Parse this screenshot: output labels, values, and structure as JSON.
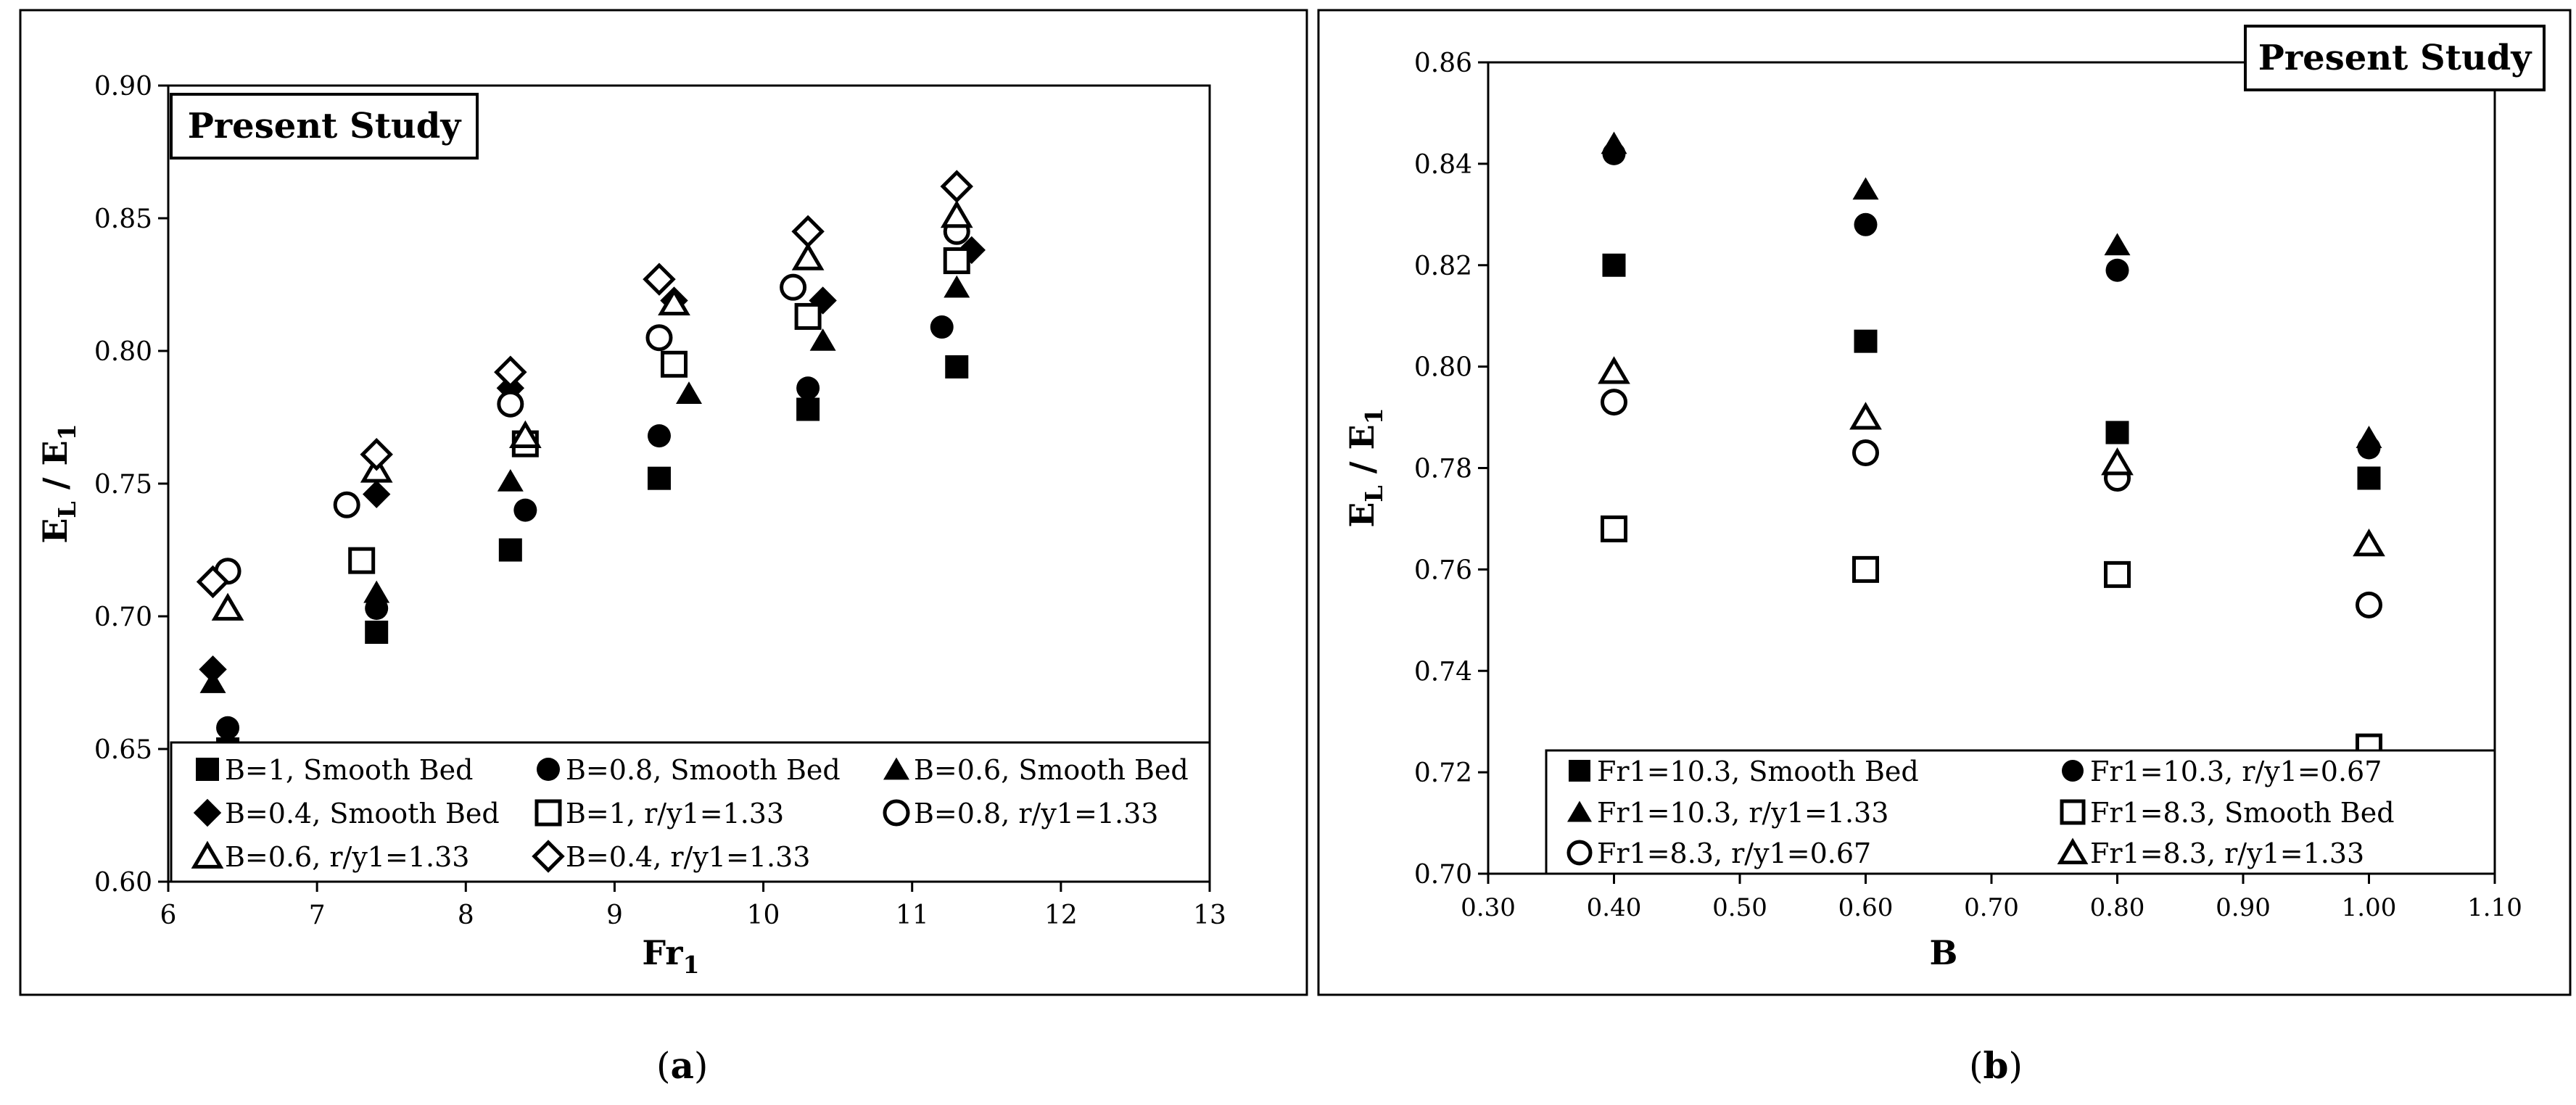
{
  "chart_data": [
    {
      "type": "scatter",
      "panel": "a",
      "title": "Present Study",
      "xlabel": "Fr",
      "xlabel_sub": "1",
      "ylabel_parts": [
        "E",
        "L",
        " / E",
        "1"
      ],
      "xlim": [
        6,
        13
      ],
      "ylim": [
        0.6,
        0.9
      ],
      "xticks": [
        6,
        7,
        8,
        9,
        10,
        11,
        12,
        13
      ],
      "yticks": [
        0.6,
        0.65,
        0.7,
        0.75,
        0.8,
        0.85,
        0.9
      ],
      "ytick_format": 2,
      "grid": false,
      "legend_position": "bottom",
      "series": [
        {
          "name": "B=1, Smooth Bed",
          "marker": "square",
          "filled": true,
          "x": [
            6.4,
            7.4,
            8.3,
            9.3,
            10.3,
            11.3
          ],
          "y": [
            0.65,
            0.694,
            0.725,
            0.752,
            0.778,
            0.794
          ]
        },
        {
          "name": "B=0.8, Smooth Bed",
          "marker": "circle",
          "filled": true,
          "x": [
            6.4,
            7.4,
            8.4,
            9.3,
            10.3,
            11.2
          ],
          "y": [
            0.658,
            0.703,
            0.74,
            0.768,
            0.786,
            0.809
          ]
        },
        {
          "name": "B=0.6, Smooth Bed",
          "marker": "triangle",
          "filled": true,
          "x": [
            6.3,
            7.4,
            8.3,
            9.5,
            10.4,
            11.3
          ],
          "y": [
            0.675,
            0.709,
            0.751,
            0.784,
            0.804,
            0.824
          ]
        },
        {
          "name": "B=0.4, Smooth Bed",
          "marker": "diamond",
          "filled": true,
          "x": [
            6.3,
            7.4,
            8.3,
            9.4,
            10.4,
            11.4
          ],
          "y": [
            0.68,
            0.746,
            0.786,
            0.819,
            0.819,
            0.838
          ]
        },
        {
          "name": "B=1, r/y1=1.33",
          "marker": "square",
          "filled": false,
          "x": [
            7.3,
            8.4,
            9.4,
            10.3,
            11.3
          ],
          "y": [
            0.721,
            0.765,
            0.795,
            0.813,
            0.834
          ]
        },
        {
          "name": "B=0.8, r/y1=1.33",
          "marker": "circle",
          "filled": false,
          "x": [
            6.4,
            7.2,
            8.3,
            9.3,
            10.2,
            11.3
          ],
          "y": [
            0.717,
            0.742,
            0.78,
            0.805,
            0.824,
            0.845
          ]
        },
        {
          "name": "B=0.6, r/y1=1.33",
          "marker": "triangle",
          "filled": false,
          "x": [
            6.4,
            7.4,
            8.4,
            9.4,
            10.3,
            11.3
          ],
          "y": [
            0.703,
            0.755,
            0.768,
            0.818,
            0.835,
            0.851
          ]
        },
        {
          "name": "B=0.4, r/y1=1.33",
          "marker": "diamond",
          "filled": false,
          "x": [
            6.3,
            7.4,
            8.3,
            9.3,
            10.3,
            11.3
          ],
          "y": [
            0.713,
            0.761,
            0.792,
            0.827,
            0.845,
            0.862
          ]
        }
      ]
    },
    {
      "type": "scatter",
      "panel": "b",
      "title": "Present Study",
      "xlabel": "B",
      "xlabel_sub": "",
      "ylabel_parts": [
        "E",
        "L",
        " / E",
        "1"
      ],
      "xlim": [
        0.3,
        1.1
      ],
      "ylim": [
        0.7,
        0.86
      ],
      "xticks": [
        0.3,
        0.4,
        0.5,
        0.6,
        0.7,
        0.8,
        0.9,
        1.0,
        1.1
      ],
      "yticks": [
        0.7,
        0.72,
        0.74,
        0.76,
        0.78,
        0.8,
        0.82,
        0.84,
        0.86
      ],
      "xtick_format": 2,
      "ytick_format": 2,
      "grid": false,
      "legend_position": "bottom",
      "series": [
        {
          "name": "Fr1=10.3, Smooth Bed",
          "marker": "square",
          "filled": true,
          "x": [
            0.4,
            0.6,
            0.8,
            1.0
          ],
          "y": [
            0.82,
            0.805,
            0.787,
            0.778
          ]
        },
        {
          "name": "Fr1=10.3, r/y1=0.67",
          "marker": "circle",
          "filled": true,
          "x": [
            0.4,
            0.6,
            0.8,
            1.0
          ],
          "y": [
            0.842,
            0.828,
            0.819,
            0.784
          ]
        },
        {
          "name": "Fr1=10.3, r/y1=1.33",
          "marker": "triangle",
          "filled": true,
          "x": [
            0.4,
            0.6,
            0.8,
            1.0
          ],
          "y": [
            0.844,
            0.835,
            0.824,
            0.786
          ]
        },
        {
          "name": "Fr1=8.3, Smooth Bed",
          "marker": "square",
          "filled": false,
          "x": [
            0.4,
            0.6,
            0.8,
            1.0
          ],
          "y": [
            0.768,
            0.76,
            0.759,
            0.725
          ]
        },
        {
          "name": "Fr1=8.3, r/y1=0.67",
          "marker": "circle",
          "filled": false,
          "x": [
            0.4,
            0.6,
            0.8,
            1.0
          ],
          "y": [
            0.793,
            0.783,
            0.778,
            0.753
          ]
        },
        {
          "name": "Fr1=8.3, r/y1=1.33",
          "marker": "triangle",
          "filled": false,
          "x": [
            0.4,
            0.6,
            0.8,
            1.0
          ],
          "y": [
            0.799,
            0.79,
            0.781,
            0.765
          ]
        }
      ]
    }
  ],
  "panel_labels": {
    "a": {
      "open": "(",
      "letter": "a",
      "close": ")"
    },
    "b": {
      "open": "(",
      "letter": "b",
      "close": ")"
    }
  }
}
